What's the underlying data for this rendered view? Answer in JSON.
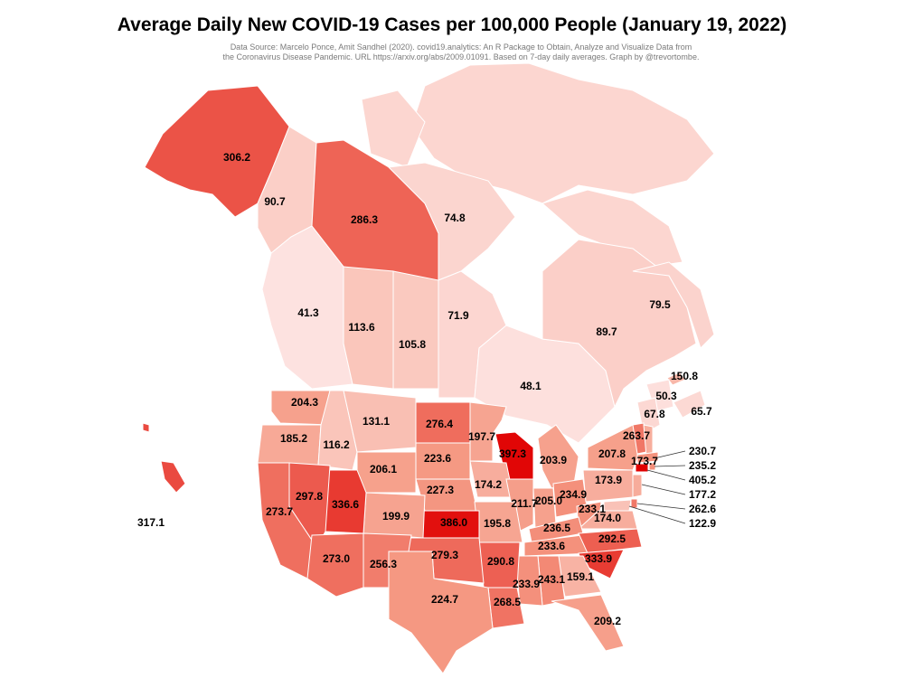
{
  "title": "Average Daily New COVID-19 Cases per 100,000 People (January 19, 2022)",
  "source_line1": "Data Source: Marcelo Ponce, Amit Sandhel (2020). covid19.analytics: An R Package to Obtain, Analyze and Visualize Data from",
  "source_line2": "the Coronavirus Disease Pandemic. URL https://arxiv.org/abs/2009.01091. Based on 7-day daily averages. Graph by @trevortombe.",
  "color_scale": {
    "low": "#fde3e1",
    "mid": "#f59a84",
    "high": "#e00000"
  },
  "regions": [
    {
      "id": "alaska",
      "value": "306.2"
    },
    {
      "id": "yukon",
      "value": "90.7"
    },
    {
      "id": "northwest-territories",
      "value": "286.3"
    },
    {
      "id": "nunavut",
      "value": "74.8"
    },
    {
      "id": "british-columbia",
      "value": "41.3"
    },
    {
      "id": "alberta",
      "value": "113.6"
    },
    {
      "id": "saskatchewan",
      "value": "105.8"
    },
    {
      "id": "manitoba",
      "value": "71.9"
    },
    {
      "id": "ontario",
      "value": "48.1"
    },
    {
      "id": "quebec",
      "value": "89.7"
    },
    {
      "id": "newfoundland-labrador",
      "value": "79.5"
    },
    {
      "id": "prince-edward-island",
      "value": "150.8"
    },
    {
      "id": "new-brunswick",
      "value": "50.3"
    },
    {
      "id": "nova-scotia",
      "value": "65.7"
    },
    {
      "id": "maine",
      "value": "67.8"
    },
    {
      "id": "washington",
      "value": "204.3"
    },
    {
      "id": "oregon",
      "value": "185.2"
    },
    {
      "id": "idaho",
      "value": "116.2"
    },
    {
      "id": "montana",
      "value": "131.1"
    },
    {
      "id": "north-dakota",
      "value": "276.4"
    },
    {
      "id": "minnesota",
      "value": "197.7"
    },
    {
      "id": "wisconsin",
      "value": "397.3"
    },
    {
      "id": "michigan",
      "value": "203.9"
    },
    {
      "id": "south-dakota",
      "value": "223.6"
    },
    {
      "id": "wyoming",
      "value": "206.1"
    },
    {
      "id": "nebraska",
      "value": "227.3"
    },
    {
      "id": "iowa",
      "value": "174.2"
    },
    {
      "id": "illinois",
      "value": "211.7"
    },
    {
      "id": "indiana",
      "value": "205.0"
    },
    {
      "id": "ohio",
      "value": "234.9"
    },
    {
      "id": "pennsylvania",
      "value": "173.9"
    },
    {
      "id": "new-york",
      "value": "207.8"
    },
    {
      "id": "vermont",
      "value": "263.7"
    },
    {
      "id": "new-hampshire",
      "value": "173.7"
    },
    {
      "id": "california",
      "value": "273.7"
    },
    {
      "id": "nevada",
      "value": "297.8"
    },
    {
      "id": "utah",
      "value": "336.6"
    },
    {
      "id": "colorado",
      "value": "199.9"
    },
    {
      "id": "kansas",
      "value": "386.0"
    },
    {
      "id": "missouri",
      "value": "195.8"
    },
    {
      "id": "kentucky",
      "value": "236.5"
    },
    {
      "id": "west-virginia",
      "value": "233.1"
    },
    {
      "id": "virginia",
      "value": "174.0"
    },
    {
      "id": "arizona",
      "value": "273.0"
    },
    {
      "id": "new-mexico",
      "value": "256.3"
    },
    {
      "id": "oklahoma",
      "value": "279.3"
    },
    {
      "id": "arkansas",
      "value": "290.8"
    },
    {
      "id": "tennessee",
      "value": "233.6"
    },
    {
      "id": "north-carolina",
      "value": "292.5"
    },
    {
      "id": "south-carolina",
      "value": "333.9"
    },
    {
      "id": "texas",
      "value": "224.7"
    },
    {
      "id": "louisiana",
      "value": "268.5"
    },
    {
      "id": "mississippi",
      "value": "233.9"
    },
    {
      "id": "alabama",
      "value": "243.1"
    },
    {
      "id": "georgia",
      "value": "159.1"
    },
    {
      "id": "florida",
      "value": "209.2"
    },
    {
      "id": "hawaii",
      "value": "317.1"
    },
    {
      "id": "massachusetts",
      "value": "230.7"
    },
    {
      "id": "rhode-island",
      "value": "235.2"
    },
    {
      "id": "connecticut",
      "value": "405.2"
    },
    {
      "id": "new-jersey",
      "value": "177.2"
    },
    {
      "id": "delaware",
      "value": "262.6"
    },
    {
      "id": "maryland",
      "value": "122.9"
    }
  ]
}
